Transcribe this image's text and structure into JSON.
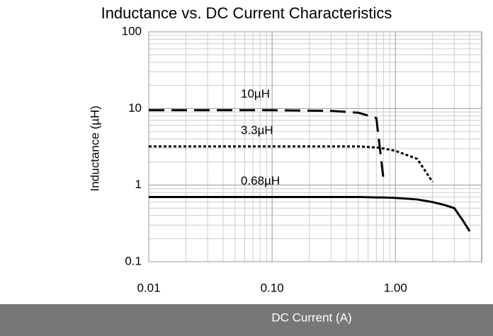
{
  "chart_data": {
    "type": "line",
    "title": "Inductance vs. DC Current Characteristics",
    "x_label": "DC Current (A)",
    "y_label": "Inductance (µH)",
    "log_x": true,
    "log_y": true,
    "grid": true,
    "x": [
      0.01,
      0.05,
      0.1,
      0.3,
      0.5,
      0.7,
      0.8,
      1.0,
      1.5,
      2.0,
      2.5,
      3.0,
      3.5,
      4.0
    ],
    "series": [
      {
        "name": "10µH",
        "color": "#000000",
        "style": "dashed",
        "values": [
          9.5,
          9.5,
          9.5,
          9.3,
          8.8,
          7.5,
          1.2,
          null,
          null,
          null,
          null,
          null,
          null,
          null
        ]
      },
      {
        "name": "3.3µH",
        "color": "#000000",
        "style": "dotted",
        "values": [
          3.2,
          3.2,
          3.2,
          3.2,
          3.2,
          3.1,
          3.0,
          2.8,
          2.2,
          1.1,
          null,
          null,
          null,
          null
        ]
      },
      {
        "name": "0.68µH",
        "color": "#000000",
        "style": "solid",
        "values": [
          0.7,
          0.7,
          0.7,
          0.7,
          0.7,
          0.69,
          0.69,
          0.68,
          0.65,
          0.6,
          0.55,
          0.5,
          0.35,
          0.25
        ]
      }
    ],
    "xlim": [
      0.01,
      5
    ],
    "xticks": [
      0.01,
      {
        "value": 0.1,
        "label": "0.10"
      },
      {
        "value": 1,
        "label": "1.00"
      }
    ],
    "ylim": [
      0.1,
      100
    ],
    "yticks": [
      0.1,
      1,
      10,
      100
    ]
  }
}
